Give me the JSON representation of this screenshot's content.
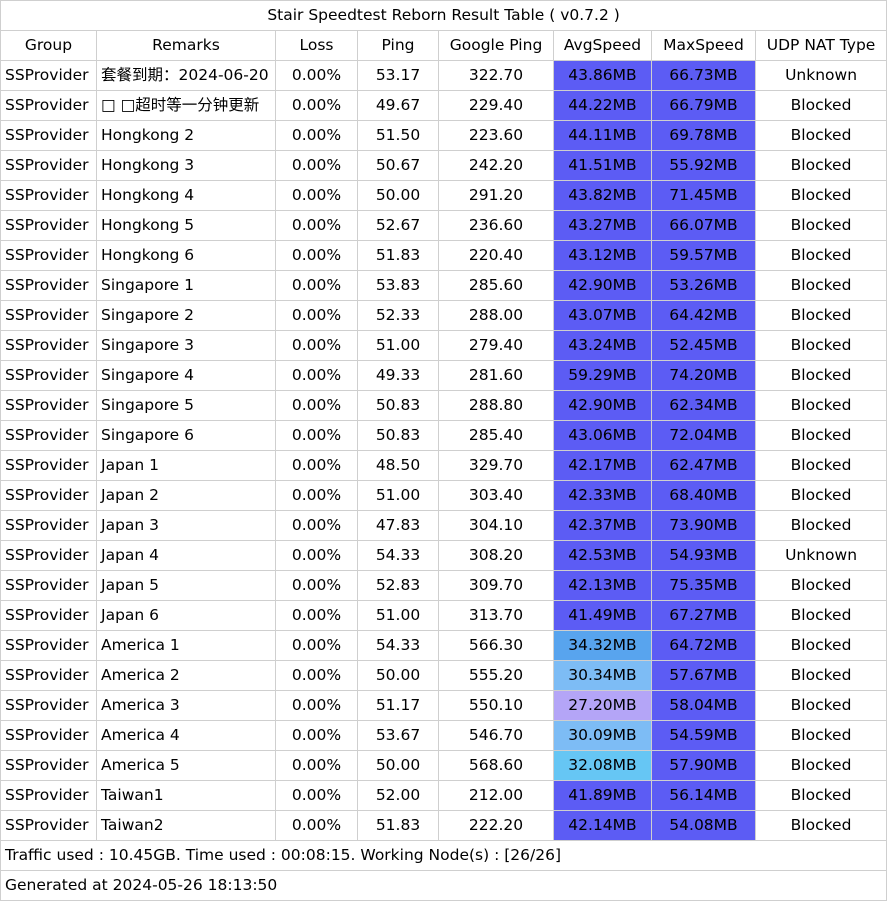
{
  "title": "Stair Speedtest Reborn Result Table ( v0.7.2 )",
  "headers": [
    "Group",
    "Remarks",
    "Loss",
    "Ping",
    "Google Ping",
    "AvgSpeed",
    "MaxSpeed",
    "UDP NAT Type"
  ],
  "rows": [
    {
      "group": "SSProvider",
      "remarks": "套餐到期：2024-06-20",
      "loss": "0.00%",
      "ping": "53.17",
      "gping": "322.70",
      "avg": "43.86MB",
      "max": "66.73MB",
      "nat": "Unknown",
      "avg_color": "#5c5cf4",
      "max_color": "#5c5cf4"
    },
    {
      "group": "SSProvider",
      "remarks": "□ □超时等一分钟更新",
      "loss": "0.00%",
      "ping": "49.67",
      "gping": "229.40",
      "avg": "44.22MB",
      "max": "66.79MB",
      "nat": "Blocked",
      "avg_color": "#5c5cf4",
      "max_color": "#5c5cf4"
    },
    {
      "group": "SSProvider",
      "remarks": "Hongkong 2",
      "loss": "0.00%",
      "ping": "51.50",
      "gping": "223.60",
      "avg": "44.11MB",
      "max": "69.78MB",
      "nat": "Blocked",
      "avg_color": "#5c5cf4",
      "max_color": "#5c5cf4"
    },
    {
      "group": "SSProvider",
      "remarks": "Hongkong 3",
      "loss": "0.00%",
      "ping": "50.67",
      "gping": "242.20",
      "avg": "41.51MB",
      "max": "55.92MB",
      "nat": "Blocked",
      "avg_color": "#5c5cf4",
      "max_color": "#5c5cf4"
    },
    {
      "group": "SSProvider",
      "remarks": "Hongkong 4",
      "loss": "0.00%",
      "ping": "50.00",
      "gping": "291.20",
      "avg": "43.82MB",
      "max": "71.45MB",
      "nat": "Blocked",
      "avg_color": "#5c5cf4",
      "max_color": "#5c5cf4"
    },
    {
      "group": "SSProvider",
      "remarks": "Hongkong 5",
      "loss": "0.00%",
      "ping": "52.67",
      "gping": "236.60",
      "avg": "43.27MB",
      "max": "66.07MB",
      "nat": "Blocked",
      "avg_color": "#5c5cf4",
      "max_color": "#5c5cf4"
    },
    {
      "group": "SSProvider",
      "remarks": "Hongkong 6",
      "loss": "0.00%",
      "ping": "51.83",
      "gping": "220.40",
      "avg": "43.12MB",
      "max": "59.57MB",
      "nat": "Blocked",
      "avg_color": "#5c5cf4",
      "max_color": "#5c5cf4"
    },
    {
      "group": "SSProvider",
      "remarks": "Singapore 1",
      "loss": "0.00%",
      "ping": "53.83",
      "gping": "285.60",
      "avg": "42.90MB",
      "max": "53.26MB",
      "nat": "Blocked",
      "avg_color": "#5c5cf4",
      "max_color": "#5c5cf4"
    },
    {
      "group": "SSProvider",
      "remarks": "Singapore 2",
      "loss": "0.00%",
      "ping": "52.33",
      "gping": "288.00",
      "avg": "43.07MB",
      "max": "64.42MB",
      "nat": "Blocked",
      "avg_color": "#5c5cf4",
      "max_color": "#5c5cf4"
    },
    {
      "group": "SSProvider",
      "remarks": "Singapore 3",
      "loss": "0.00%",
      "ping": "51.00",
      "gping": "279.40",
      "avg": "43.24MB",
      "max": "52.45MB",
      "nat": "Blocked",
      "avg_color": "#5c5cf4",
      "max_color": "#5c5cf4"
    },
    {
      "group": "SSProvider",
      "remarks": "Singapore 4",
      "loss": "0.00%",
      "ping": "49.33",
      "gping": "281.60",
      "avg": "59.29MB",
      "max": "74.20MB",
      "nat": "Blocked",
      "avg_color": "#5c5cf4",
      "max_color": "#5c5cf4"
    },
    {
      "group": "SSProvider",
      "remarks": "Singapore 5",
      "loss": "0.00%",
      "ping": "50.83",
      "gping": "288.80",
      "avg": "42.90MB",
      "max": "62.34MB",
      "nat": "Blocked",
      "avg_color": "#5c5cf4",
      "max_color": "#5c5cf4"
    },
    {
      "group": "SSProvider",
      "remarks": "Singapore 6",
      "loss": "0.00%",
      "ping": "50.83",
      "gping": "285.40",
      "avg": "43.06MB",
      "max": "72.04MB",
      "nat": "Blocked",
      "avg_color": "#5c5cf4",
      "max_color": "#5c5cf4"
    },
    {
      "group": "SSProvider",
      "remarks": "Japan 1",
      "loss": "0.00%",
      "ping": "48.50",
      "gping": "329.70",
      "avg": "42.17MB",
      "max": "62.47MB",
      "nat": "Blocked",
      "avg_color": "#5c5cf4",
      "max_color": "#5c5cf4"
    },
    {
      "group": "SSProvider",
      "remarks": "Japan 2",
      "loss": "0.00%",
      "ping": "51.00",
      "gping": "303.40",
      "avg": "42.33MB",
      "max": "68.40MB",
      "nat": "Blocked",
      "avg_color": "#5c5cf4",
      "max_color": "#5c5cf4"
    },
    {
      "group": "SSProvider",
      "remarks": "Japan 3",
      "loss": "0.00%",
      "ping": "47.83",
      "gping": "304.10",
      "avg": "42.37MB",
      "max": "73.90MB",
      "nat": "Blocked",
      "avg_color": "#5c5cf4",
      "max_color": "#5c5cf4"
    },
    {
      "group": "SSProvider",
      "remarks": "Japan 4",
      "loss": "0.00%",
      "ping": "54.33",
      "gping": "308.20",
      "avg": "42.53MB",
      "max": "54.93MB",
      "nat": "Unknown",
      "avg_color": "#5c5cf4",
      "max_color": "#5c5cf4"
    },
    {
      "group": "SSProvider",
      "remarks": "Japan 5",
      "loss": "0.00%",
      "ping": "52.83",
      "gping": "309.70",
      "avg": "42.13MB",
      "max": "75.35MB",
      "nat": "Blocked",
      "avg_color": "#5c5cf4",
      "max_color": "#5c5cf4"
    },
    {
      "group": "SSProvider",
      "remarks": "Japan 6",
      "loss": "0.00%",
      "ping": "51.00",
      "gping": "313.70",
      "avg": "41.49MB",
      "max": "67.27MB",
      "nat": "Blocked",
      "avg_color": "#5c5cf4",
      "max_color": "#5c5cf4"
    },
    {
      "group": "SSProvider",
      "remarks": "America 1",
      "loss": "0.00%",
      "ping": "54.33",
      "gping": "566.30",
      "avg": "34.32MB",
      "max": "64.72MB",
      "nat": "Blocked",
      "avg_color": "#58a4ee",
      "max_color": "#5c5cf4"
    },
    {
      "group": "SSProvider",
      "remarks": "America 2",
      "loss": "0.00%",
      "ping": "50.00",
      "gping": "555.20",
      "avg": "30.34MB",
      "max": "57.67MB",
      "nat": "Blocked",
      "avg_color": "#7dbcf5",
      "max_color": "#5c5cf4"
    },
    {
      "group": "SSProvider",
      "remarks": "America 3",
      "loss": "0.00%",
      "ping": "51.17",
      "gping": "550.10",
      "avg": "27.20MB",
      "max": "58.04MB",
      "nat": "Blocked",
      "avg_color": "#b4a5f7",
      "max_color": "#5c5cf4"
    },
    {
      "group": "SSProvider",
      "remarks": "America 4",
      "loss": "0.00%",
      "ping": "53.67",
      "gping": "546.70",
      "avg": "30.09MB",
      "max": "54.59MB",
      "nat": "Blocked",
      "avg_color": "#7dbcf5",
      "max_color": "#5c5cf4"
    },
    {
      "group": "SSProvider",
      "remarks": "America 5",
      "loss": "0.00%",
      "ping": "50.00",
      "gping": "568.60",
      "avg": "32.08MB",
      "max": "57.90MB",
      "nat": "Blocked",
      "avg_color": "#66c6f4",
      "max_color": "#5c5cf4"
    },
    {
      "group": "SSProvider",
      "remarks": "Taiwan1",
      "loss": "0.00%",
      "ping": "52.00",
      "gping": "212.00",
      "avg": "41.89MB",
      "max": "56.14MB",
      "nat": "Blocked",
      "avg_color": "#5c5cf4",
      "max_color": "#5c5cf4"
    },
    {
      "group": "SSProvider",
      "remarks": "Taiwan2",
      "loss": "0.00%",
      "ping": "51.83",
      "gping": "222.20",
      "avg": "42.14MB",
      "max": "54.08MB",
      "nat": "Blocked",
      "avg_color": "#5c5cf4",
      "max_color": "#5c5cf4"
    }
  ],
  "footer": {
    "traffic": "Traffic used : 10.45GB. Time used : 00:08:15. Working Node(s) : [26/26]",
    "generated": "Generated at 2024-05-26 18:13:50"
  }
}
